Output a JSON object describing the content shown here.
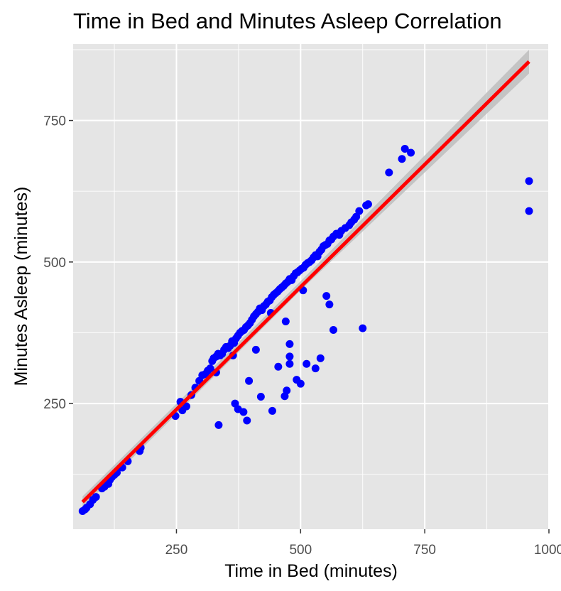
{
  "chart_data": {
    "type": "scatter",
    "title": "Time in Bed and Minutes Asleep Correlation",
    "xlabel": "Time in Bed (minutes)",
    "ylabel": "Minutes Asleep (minutes)",
    "xlim": [
      42,
      1000
    ],
    "ylim": [
      28,
      885
    ],
    "x_ticks": [
      250,
      500,
      750,
      1000
    ],
    "x_tick_labels": [
      "250",
      "500",
      "750",
      "1000"
    ],
    "y_ticks": [
      250,
      500,
      750
    ],
    "y_tick_labels": [
      "250",
      "500",
      "750"
    ],
    "x_minor_ticks": [
      125,
      375,
      625,
      875
    ],
    "y_minor_ticks": [
      125,
      375,
      625,
      875
    ],
    "grid": true,
    "legend": "none",
    "colors": {
      "points": "#0000ff",
      "fit_line": "#ff0000",
      "confidence_band": "#bebebe",
      "panel": "#e5e5e5",
      "grid": "#ffffff"
    },
    "series": [
      {
        "kind": "points",
        "x": [
          61,
          66,
          69,
          76,
          82,
          88,
          100,
          105,
          108,
          113,
          116,
          120,
          125,
          130,
          141,
          152,
          176,
          178,
          248,
          258,
          262,
          270,
          280,
          288,
          296,
          302,
          308,
          313,
          318,
          322,
          325,
          330,
          334,
          338,
          342,
          346,
          350,
          354,
          358,
          362,
          366,
          370,
          374,
          378,
          382,
          386,
          390,
          394,
          398,
          402,
          406,
          410,
          414,
          418,
          422,
          426,
          430,
          434,
          438,
          442,
          446,
          450,
          454,
          458,
          462,
          466,
          470,
          474,
          478,
          482,
          486,
          490,
          494,
          498,
          502,
          506,
          510,
          514,
          518,
          522,
          526,
          530,
          534,
          538,
          542,
          546,
          550,
          554,
          558,
          562,
          566,
          572,
          578,
          582,
          590,
          598,
          602,
          608,
          612,
          618,
          632,
          636,
          678,
          704,
          710,
          722,
          335,
          368,
          374,
          385,
          392,
          396,
          420,
          443,
          455,
          468,
          472,
          478,
          478,
          478,
          492,
          500,
          512,
          530,
          540,
          552,
          558,
          566,
          625,
          330,
          364,
          410,
          440,
          470,
          505,
          960,
          960
        ],
        "y": [
          60,
          63,
          66,
          72,
          80,
          85,
          100,
          103,
          110,
          108,
          115,
          120,
          124,
          128,
          137,
          148,
          166,
          172,
          228,
          253,
          238,
          245,
          265,
          278,
          290,
          300,
          302,
          308,
          312,
          325,
          330,
          333,
          338,
          335,
          338,
          345,
          350,
          348,
          352,
          360,
          357,
          365,
          370,
          375,
          378,
          380,
          385,
          388,
          392,
          398,
          404,
          408,
          412,
          418,
          415,
          422,
          425,
          430,
          432,
          438,
          442,
          445,
          448,
          452,
          455,
          458,
          462,
          465,
          470,
          468,
          475,
          480,
          482,
          485,
          488,
          490,
          495,
          498,
          500,
          503,
          508,
          512,
          510,
          518,
          522,
          528,
          530,
          532,
          538,
          540,
          545,
          550,
          548,
          555,
          560,
          565,
          570,
          575,
          580,
          590,
          600,
          602,
          658,
          682,
          700,
          693,
          212,
          250,
          240,
          235,
          220,
          290,
          262,
          237,
          315,
          263,
          273,
          355,
          333,
          320,
          292,
          285,
          320,
          312,
          330,
          440,
          425,
          380,
          383,
          305,
          335,
          345,
          410,
          395,
          450,
          643,
          590
        ]
      },
      {
        "kind": "fit_line",
        "method": "lm",
        "x": [
          61,
          960
        ],
        "y": [
          76,
          854
        ],
        "band_upper": [
          [
            61,
            86
          ],
          [
            500,
            466
          ],
          [
            960,
            875
          ]
        ],
        "band_lower": [
          [
            61,
            66
          ],
          [
            500,
            450
          ],
          [
            960,
            833
          ]
        ]
      }
    ]
  }
}
